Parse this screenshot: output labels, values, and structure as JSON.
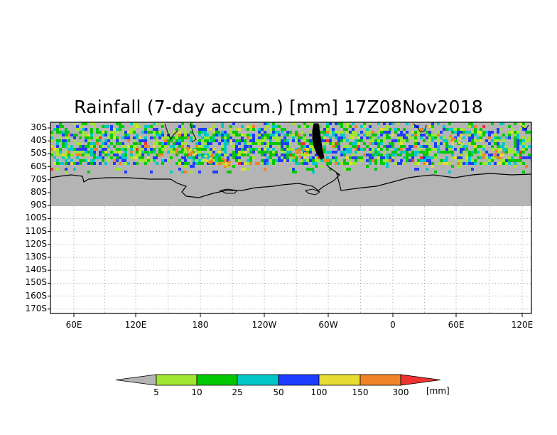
{
  "title": "Rainfall (7-day accum.) [mm] 17Z08Nov2018",
  "map": {
    "lat_labels": [
      "30S",
      "40S",
      "50S",
      "60S",
      "70S",
      "80S",
      "90S",
      "100S",
      "110S",
      "120S",
      "130S",
      "140S",
      "150S",
      "160S",
      "170S"
    ],
    "lon_labels": [
      "60E",
      "120E",
      "180",
      "120W",
      "60W",
      "0",
      "60E",
      "120E"
    ],
    "no_data_color": "#b4b4b4",
    "background": "#ffffff",
    "coastline_color": "#000000"
  },
  "colorbar": {
    "labels": [
      "5",
      "10",
      "25",
      "50",
      "100",
      "150",
      "300"
    ],
    "unit": "[mm]",
    "colors": [
      "#b4b4b4",
      "#a0e632",
      "#00c800",
      "#00c8c8",
      "#1e3cff",
      "#e6dc32",
      "#f08228",
      "#f03232"
    ]
  }
}
